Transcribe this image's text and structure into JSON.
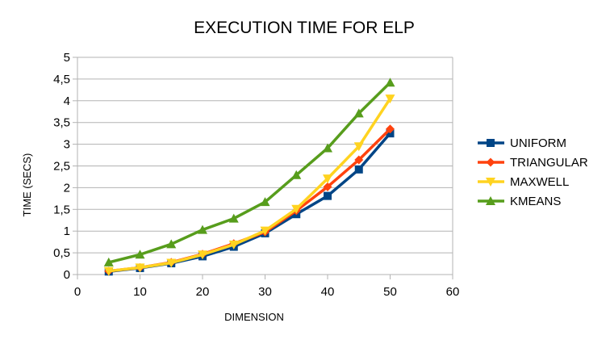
{
  "chart_data": {
    "type": "line",
    "title": "EXECUTION TIME FOR ELP",
    "xlabel": "DIMENSION",
    "ylabel": "TIME (SECS)",
    "xlim": [
      0,
      60
    ],
    "ylim": [
      0,
      5
    ],
    "xticks": [
      0,
      10,
      20,
      30,
      40,
      50,
      60
    ],
    "yticks": [
      0,
      0.5,
      1,
      1.5,
      2,
      2.5,
      3,
      3.5,
      4,
      4.5,
      5
    ],
    "xtick_labels": [
      "0",
      "10",
      "20",
      "30",
      "40",
      "50",
      "60"
    ],
    "ytick_labels": [
      "0",
      "0,5",
      "1",
      "1,5",
      "2",
      "2,5",
      "3",
      "3,5",
      "4",
      "4,5",
      "5"
    ],
    "grid": "horizontal",
    "legend_position": "right",
    "x": [
      5,
      10,
      15,
      20,
      25,
      30,
      35,
      40,
      45,
      50
    ],
    "series": [
      {
        "name": "UNIFORM",
        "color": "#004586",
        "marker": "square",
        "values": [
          0.07,
          0.15,
          0.26,
          0.42,
          0.64,
          0.95,
          1.39,
          1.81,
          2.42,
          3.25
        ]
      },
      {
        "name": "TRIANGULAR",
        "color": "#ff420e",
        "marker": "diamond",
        "values": [
          0.08,
          0.16,
          0.28,
          0.47,
          0.71,
          0.98,
          1.47,
          2.02,
          2.64,
          3.35
        ]
      },
      {
        "name": "MAXWELL",
        "color": "#ffd320",
        "marker": "triangle-down",
        "values": [
          0.08,
          0.16,
          0.27,
          0.46,
          0.69,
          1.01,
          1.51,
          2.21,
          2.95,
          4.05
        ]
      },
      {
        "name": "KMEANS",
        "color": "#579d1c",
        "marker": "triangle-up",
        "values": [
          0.28,
          0.46,
          0.7,
          1.03,
          1.29,
          1.67,
          2.29,
          2.91,
          3.71,
          4.42
        ]
      }
    ]
  }
}
